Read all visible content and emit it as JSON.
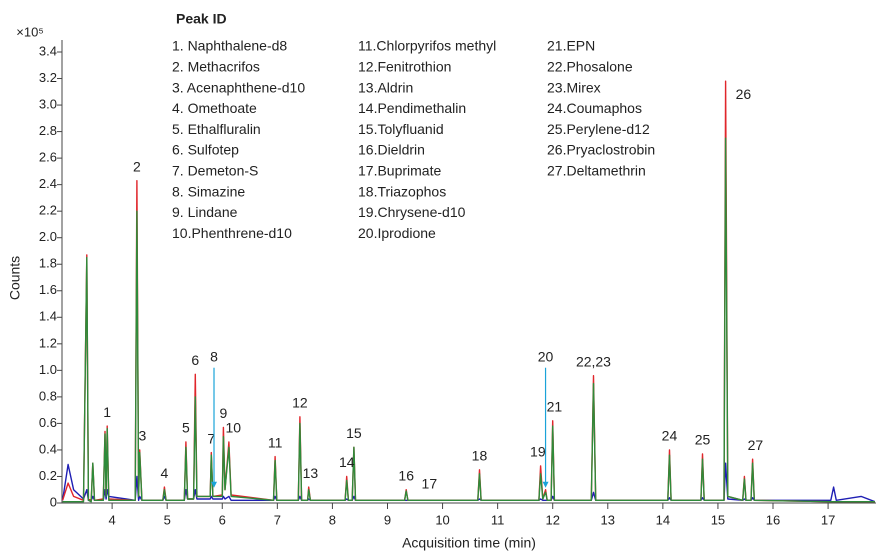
{
  "chart_data": {
    "type": "line",
    "y_multiplier": "×10⁵",
    "ylabel": "Counts",
    "xlabel": "Acquisition time (min)",
    "legend_title": "Peak ID",
    "peak_list": [
      "1.  Naphthalene-d8",
      "2.  Methacrifos",
      "3.  Acenaphthene-d10",
      "4.  Omethoate",
      "5.  Ethalfluralin",
      "6.  Sulfotep",
      "7.  Demeton-S",
      "8.  Simazine",
      "9.  Lindane",
      "10.Phenthrene-d10",
      "11.Chlorpyrifos methyl",
      "12.Fenitrothion",
      "13.Aldrin",
      "14.Pendimethalin",
      "15.Tolyfluanid",
      "16.Dieldrin",
      "17.Buprimate",
      "18.Triazophos",
      "19.Chrysene-d10",
      "20.Iprodione",
      "21.EPN",
      "22.Phosalone",
      "23.Mirex",
      "24.Coumaphos",
      "25.Perylene-d12",
      "26.Pryaclostrobin",
      "27.Deltamethrin"
    ],
    "xlim": [
      3.09,
      17.87
    ],
    "xticks": [
      4,
      5,
      6,
      7,
      8,
      9,
      10,
      11,
      12,
      13,
      14,
      15,
      16,
      17
    ],
    "ylim": [
      0,
      3.4
    ],
    "yticks": [
      0,
      0.2,
      0.4,
      0.6,
      0.8,
      {
        "value": 1,
        "label": "1.0"
      },
      1.2,
      1.4,
      1.6,
      1.8,
      {
        "value": 2,
        "label": "2.0"
      },
      2.2,
      2.4,
      2.6,
      2.8,
      {
        "value": 3,
        "label": "3.0"
      },
      3.2,
      3.4
    ],
    "x": [
      3.1,
      3.2,
      3.3,
      3.48,
      3.54,
      3.57,
      3.62,
      3.65,
      3.68,
      3.84,
      3.87,
      3.89,
      3.91,
      3.94,
      4.42,
      4.45,
      4.48,
      4.5,
      4.54,
      4.92,
      4.95,
      4.98,
      5.31,
      5.34,
      5.37,
      5.48,
      5.51,
      5.54,
      5.78,
      5.8,
      5.83,
      6,
      6.02,
      6.05,
      6.12,
      6.16,
      6.93,
      6.96,
      6.99,
      7.38,
      7.41,
      7.44,
      7.55,
      7.57,
      7.6,
      8.23,
      8.26,
      8.29,
      8.36,
      8.39,
      8.42,
      9.31,
      9.34,
      9.37,
      10.64,
      10.67,
      10.7,
      11.75,
      11.78,
      11.82,
      11.87,
      11.9,
      11.97,
      12,
      12.03,
      12.7,
      12.74,
      12.78,
      14.09,
      14.12,
      14.15,
      14.69,
      14.72,
      14.75,
      15.11,
      15.14,
      15.18,
      15.45,
      15.48,
      15.51,
      15.6,
      15.63,
      15.66,
      17.05,
      17.1,
      17.15,
      17.6,
      17.85
    ],
    "series": [
      {
        "color": "#1f1fb4",
        "values": [
          0.02,
          0.29,
          0.1,
          0.03,
          0.1,
          0.02,
          0.02,
          0.05,
          0.02,
          0.02,
          0.1,
          0.03,
          0.1,
          0.05,
          0.02,
          0.2,
          0.02,
          0.05,
          0.02,
          0.02,
          0.05,
          0.02,
          0.02,
          0.1,
          0.03,
          0.03,
          0.1,
          0.03,
          0.03,
          0.05,
          0.03,
          0.03,
          0.05,
          0.03,
          0.05,
          0.02,
          0.02,
          0.05,
          0.02,
          0.02,
          0.05,
          0.02,
          0.02,
          0.03,
          0.02,
          0.02,
          0.03,
          0.02,
          0.02,
          0.05,
          0.02,
          0.02,
          0.02,
          0.02,
          0.02,
          0.03,
          0.02,
          0.02,
          0.03,
          0.02,
          0.02,
          0.02,
          0.02,
          0.05,
          0.02,
          0.02,
          0.08,
          0.02,
          0.02,
          0.04,
          0.02,
          0.02,
          0.04,
          0.02,
          0.02,
          0.3,
          0.03,
          0.02,
          0.03,
          0.02,
          0.02,
          0.04,
          0.02,
          0.02,
          0.12,
          0.02,
          0.05,
          0.01
        ]
      },
      {
        "color": "#e0262b",
        "values": [
          0.02,
          0.15,
          0.05,
          0.02,
          1.87,
          0.03,
          0.02,
          0.3,
          0.02,
          0.03,
          0.54,
          0.06,
          0.58,
          0.03,
          0.02,
          2.43,
          0.05,
          0.4,
          0.02,
          0.02,
          0.12,
          0.02,
          0.02,
          0.46,
          0.03,
          0.03,
          0.97,
          0.05,
          0.05,
          0.38,
          0.05,
          0.06,
          0.57,
          0.1,
          0.46,
          0.06,
          0.02,
          0.35,
          0.02,
          0.02,
          0.65,
          0.02,
          0.02,
          0.12,
          0.02,
          0.02,
          0.2,
          0.02,
          0.02,
          0.42,
          0.02,
          0.02,
          0.1,
          0.02,
          0.02,
          0.25,
          0.02,
          0.02,
          0.28,
          0.03,
          0.1,
          0.02,
          0.02,
          0.62,
          0.02,
          0.02,
          0.96,
          0.02,
          0.02,
          0.4,
          0.02,
          0.02,
          0.37,
          0.02,
          0.02,
          3.18,
          0.05,
          0.02,
          0.2,
          0.02,
          0.02,
          0.33,
          0.02,
          0.01,
          0.01,
          0.01,
          0.01,
          0.01
        ]
      },
      {
        "color": "#2e8b3a",
        "values": [
          0.01,
          0.01,
          0.01,
          0.01,
          1.85,
          0.02,
          0.01,
          0.3,
          0.02,
          0.02,
          0.52,
          0.05,
          0.56,
          0.02,
          0.02,
          2.2,
          0.05,
          0.38,
          0.02,
          0.02,
          0.1,
          0.02,
          0.02,
          0.42,
          0.03,
          0.03,
          0.8,
          0.05,
          0.05,
          0.36,
          0.05,
          0.05,
          0.5,
          0.1,
          0.42,
          0.05,
          0.02,
          0.32,
          0.02,
          0.02,
          0.6,
          0.02,
          0.02,
          0.1,
          0.02,
          0.02,
          0.17,
          0.02,
          0.02,
          0.42,
          0.02,
          0.02,
          0.09,
          0.02,
          0.02,
          0.22,
          0.02,
          0.02,
          0.22,
          0.03,
          0.08,
          0.02,
          0.02,
          0.58,
          0.02,
          0.02,
          0.9,
          0.02,
          0.02,
          0.36,
          0.02,
          0.02,
          0.33,
          0.02,
          0.02,
          2.75,
          0.05,
          0.02,
          0.18,
          0.02,
          0.02,
          0.3,
          0.02,
          0.01,
          0.01,
          0.01,
          0.01,
          0.01
        ]
      }
    ],
    "peaks": [
      {
        "label": "1",
        "time": 3.91,
        "height": 0.58
      },
      {
        "label": "2",
        "time": 4.45,
        "height": 2.43
      },
      {
        "label": "3",
        "time": 4.55,
        "height": 0.4
      },
      {
        "label": "4",
        "time": 4.95,
        "height": 0.12
      },
      {
        "label": "5",
        "time": 5.34,
        "height": 0.46
      },
      {
        "label": "6",
        "time": 5.51,
        "height": 0.97
      },
      {
        "label": "7",
        "time": 5.8,
        "height": 0.38
      },
      {
        "label": "8",
        "time": 5.85,
        "height": 0.1,
        "arrow": true
      },
      {
        "label": "9",
        "time": 6.02,
        "height": 0.57
      },
      {
        "label": "10",
        "time": 6.2,
        "height": 0.46
      },
      {
        "label": "11",
        "time": 6.96,
        "height": 0.35
      },
      {
        "label": "12",
        "time": 7.41,
        "height": 0.65
      },
      {
        "label": "13",
        "time": 7.6,
        "height": 0.12
      },
      {
        "label": "14",
        "time": 8.26,
        "height": 0.2
      },
      {
        "label": "15",
        "time": 8.39,
        "height": 0.42
      },
      {
        "label": "16",
        "time": 9.34,
        "height": 0.1
      },
      {
        "label": "17",
        "time": 9.76,
        "height": 0.04
      },
      {
        "label": "18",
        "time": 10.67,
        "height": 0.25
      },
      {
        "label": "19",
        "time": 11.73,
        "height": 0.28
      },
      {
        "label": "20",
        "time": 11.87,
        "height": 0.1,
        "arrow": true
      },
      {
        "label": "21",
        "time": 12.03,
        "height": 0.62
      },
      {
        "label": "22,23",
        "time": 12.74,
        "height": 0.96
      },
      {
        "label": "24",
        "time": 14.12,
        "height": 0.4
      },
      {
        "label": "25",
        "time": 14.72,
        "height": 0.37
      },
      {
        "label": "26",
        "time": 15.14,
        "height": 3.18
      },
      {
        "label": "27",
        "time": 15.68,
        "height": 0.33
      }
    ]
  }
}
